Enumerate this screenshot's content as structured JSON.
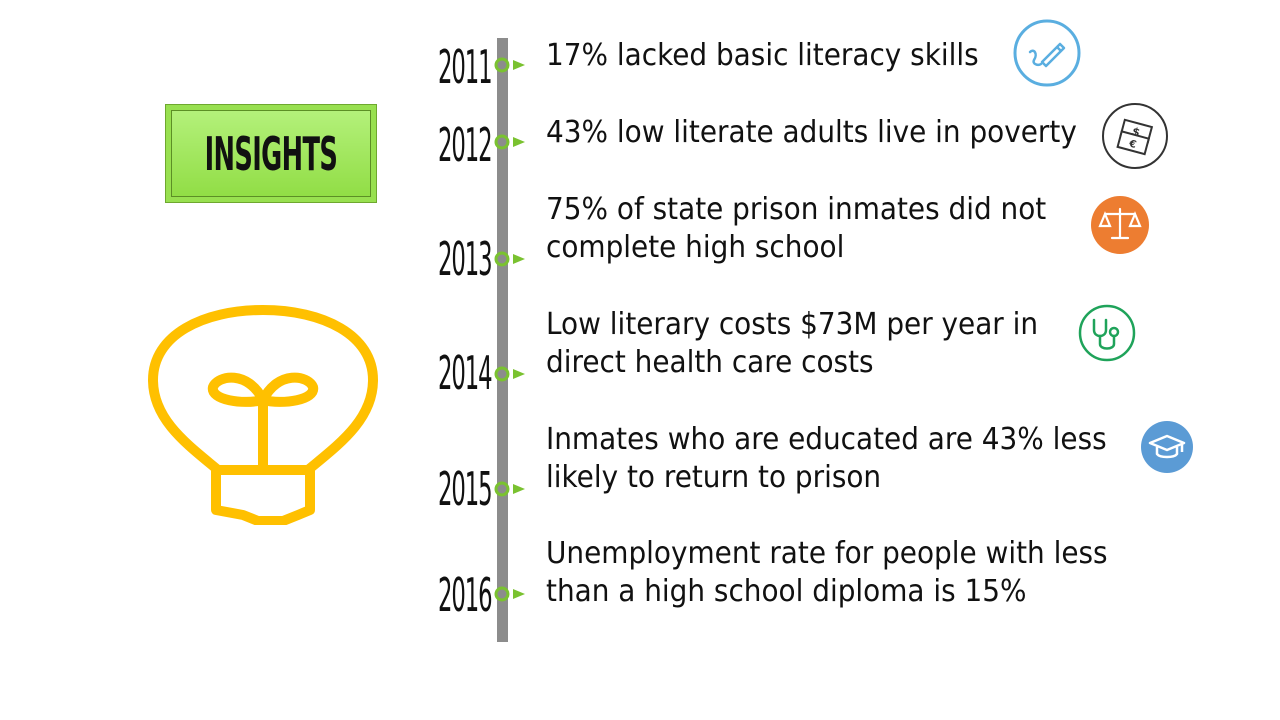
{
  "insights_label": "INSIGHTS",
  "timeline": [
    {
      "year": "2011",
      "lines": [
        "17% lacked basic literacy skills"
      ],
      "icon": "pencil-icon"
    },
    {
      "year": "2012",
      "lines": [
        "43% low literate adults live in poverty"
      ],
      "icon": "money-icon"
    },
    {
      "year": "2013",
      "lines": [
        "75% of state prison inmates did not",
        "complete high school"
      ],
      "icon": "scales-icon"
    },
    {
      "year": "2014",
      "lines": [
        "Low literary costs $73M per year in",
        "direct health care costs"
      ],
      "icon": "stethoscope-icon"
    },
    {
      "year": "2015",
      "lines": [
        "Inmates who are educated are 43% less",
        "likely to return to prison"
      ],
      "icon": "graduation-cap-icon"
    },
    {
      "year": "2016",
      "lines": [
        "Unemployment rate for people with less",
        "than a high school diploma is 15%"
      ],
      "icon": ""
    }
  ],
  "colors": {
    "insights_green": "#98e050",
    "bulb_yellow": "#ffc000",
    "axis_gray": "#8c8c8c",
    "marker_green": "#7ac230",
    "pencil_blue": "#5aaee0",
    "scales_orange": "#ed7d31",
    "stethoscope_green": "#1fa35a",
    "cap_blue": "#5b9bd5"
  }
}
